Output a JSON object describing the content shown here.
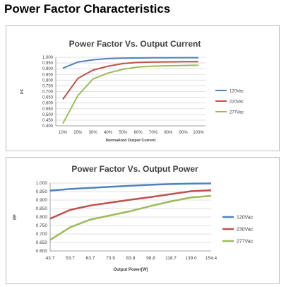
{
  "page": {
    "title": "Power Factor Characteristics"
  },
  "chart_data": [
    {
      "type": "line",
      "title": "Power Factor Vs. Output Current",
      "xlabel": "Normalized Output Current",
      "ylabel": "PF",
      "categories": [
        "10%",
        "20%",
        "30%",
        "40%",
        "50%",
        "60%",
        "70%",
        "80%",
        "90%",
        "100%"
      ],
      "y_ticks": [
        "0.400",
        "0.450",
        "0.500",
        "0.550",
        "0.600",
        "0.650",
        "0.700",
        "0.750",
        "0.800",
        "0.850",
        "0.900",
        "0.950",
        "1.000"
      ],
      "ylim": [
        0.4,
        1.0
      ],
      "grid": true,
      "legend_position": "right",
      "series": [
        {
          "name": "120Vac",
          "color": "#4f81bd",
          "values": [
            0.905,
            0.958,
            0.978,
            0.988,
            0.992,
            0.994,
            0.995,
            0.995,
            0.996,
            0.996
          ]
        },
        {
          "name": "220Vac",
          "color": "#c0504d",
          "values": [
            0.632,
            0.815,
            0.888,
            0.922,
            0.945,
            0.955,
            0.958,
            0.96,
            0.961,
            0.961
          ]
        },
        {
          "name": "277Vac",
          "color": "#9bbb59",
          "values": [
            0.42,
            0.665,
            0.81,
            0.862,
            0.895,
            0.915,
            0.922,
            0.926,
            0.928,
            0.93
          ]
        }
      ]
    },
    {
      "type": "line",
      "title": "Power Factor Vs. Output Power",
      "xlabel": "Output Power[W]",
      "ylabel": "PF",
      "categories": [
        "43.7",
        "53.7",
        "63.7",
        "73.9",
        "83.8",
        "98.8",
        "118.7",
        "139.0",
        "154.4"
      ],
      "y_ticks": [
        "0.600",
        "0.650",
        "0.700",
        "0.750",
        "0.800",
        "0.850",
        "0.900",
        "0.950",
        "1.000"
      ],
      "ylim": [
        0.6,
        1.0
      ],
      "grid": true,
      "legend_position": "right",
      "series": [
        {
          "name": "120Vac",
          "color": "#4f81bd",
          "values": [
            0.956,
            0.965,
            0.972,
            0.978,
            0.984,
            0.99,
            0.994,
            0.997,
            0.998
          ]
        },
        {
          "name": "230Vac",
          "color": "#c0504d",
          "values": [
            0.79,
            0.842,
            0.868,
            0.885,
            0.902,
            0.918,
            0.935,
            0.952,
            0.958
          ]
        },
        {
          "name": "277Vac",
          "color": "#9bbb59",
          "values": [
            0.665,
            0.74,
            0.785,
            0.81,
            0.835,
            0.865,
            0.892,
            0.915,
            0.925
          ]
        }
      ]
    }
  ]
}
